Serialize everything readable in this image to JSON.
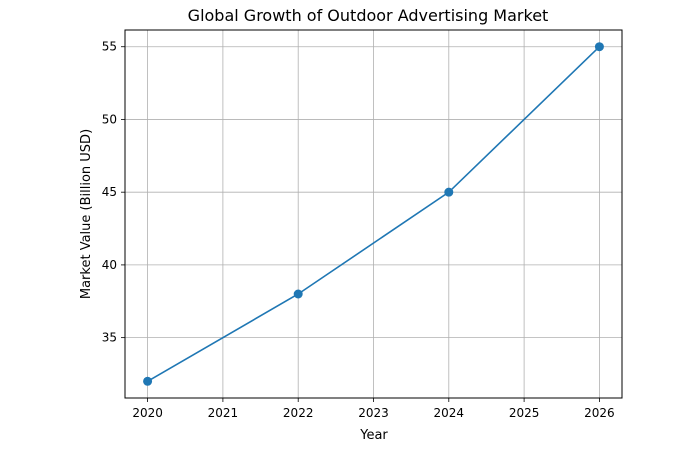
{
  "chart_data": {
    "type": "line",
    "title": "Global Growth of Outdoor Advertising Market",
    "xlabel": "Year",
    "ylabel": "Market Value (Billion USD)",
    "x": [
      2020,
      2022,
      2024,
      2026
    ],
    "series": [
      {
        "name": "Market Value",
        "values": [
          32,
          38,
          45,
          55
        ],
        "color": "#1f77b4",
        "marker": "circle"
      }
    ],
    "xticks": [
      2020,
      2021,
      2022,
      2023,
      2024,
      2025,
      2026
    ],
    "yticks": [
      35,
      40,
      45,
      50,
      55
    ],
    "xlim": [
      2019.7,
      2026.3
    ],
    "ylim": [
      30.85,
      56.15
    ],
    "grid": true,
    "legend": null
  }
}
